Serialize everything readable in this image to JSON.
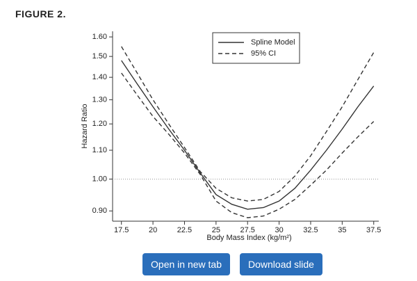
{
  "header": "FIGURE 2.",
  "chart_data": {
    "type": "line",
    "x_label": "Body Mass Index (kg/m²)",
    "y_label": "Hazard Ratio",
    "x": [
      17.5,
      18.75,
      20,
      21.25,
      22.5,
      23.75,
      25,
      26.25,
      27.5,
      28.75,
      30,
      31.25,
      32.5,
      33.75,
      35,
      36.25,
      37.5
    ],
    "series": [
      {
        "name": "Spline Model",
        "color": "#333333",
        "dash": false,
        "values": [
          1.48,
          1.37,
          1.27,
          1.18,
          1.1,
          1.02,
          0.95,
          0.92,
          0.905,
          0.91,
          0.93,
          0.97,
          1.03,
          1.1,
          1.18,
          1.27,
          1.36
        ]
      },
      {
        "name": "95% CI",
        "color": "#333333",
        "dash": true,
        "values": [
          1.55,
          1.42,
          1.3,
          1.2,
          1.11,
          1.025,
          0.97,
          0.94,
          0.93,
          0.935,
          0.96,
          1.01,
          1.08,
          1.17,
          1.27,
          1.39,
          1.52
        ]
      },
      {
        "color": "#333333",
        "dash": true,
        "values": [
          1.42,
          1.32,
          1.23,
          1.16,
          1.09,
          1.015,
          0.93,
          0.895,
          0.88,
          0.885,
          0.905,
          0.935,
          0.98,
          1.03,
          1.09,
          1.15,
          1.21
        ]
      }
    ],
    "reference_line": 1,
    "xlim": [
      16.8,
      37.9
    ],
    "xticks": [
      17.5,
      20,
      22.5,
      25,
      27.5,
      30,
      32.5,
      35,
      37.5
    ],
    "ylim": [
      0.87,
      1.63
    ],
    "y_log": true,
    "yticks": [
      {
        "value": 0.9,
        "label": "0.90"
      },
      {
        "value": 1,
        "label": "1.00"
      },
      {
        "value": 1.1,
        "label": "1.10"
      },
      {
        "value": 1.2,
        "label": "1.20"
      },
      {
        "value": 1.3,
        "label": "1.30"
      },
      {
        "value": 1.4,
        "label": "1.40"
      },
      {
        "value": 1.5,
        "label": "1.50"
      },
      {
        "value": 1.6,
        "label": "1.60"
      }
    ],
    "legend": "top"
  },
  "buttons": [
    "Open in new tab",
    "Download slide"
  ]
}
